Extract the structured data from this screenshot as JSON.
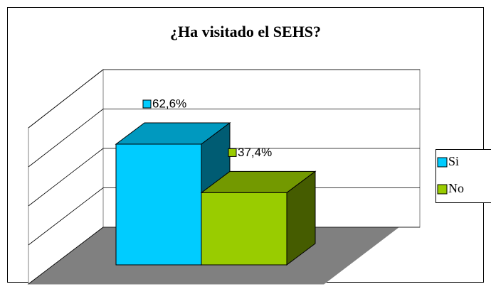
{
  "chart_data": {
    "type": "bar3d",
    "title": "¿Ha visitado el SEHS?",
    "categories": [
      null
    ],
    "series": [
      {
        "name": "Si",
        "color": "#00ccff",
        "values": [
          62.6
        ],
        "value_labels": [
          "62,6%"
        ]
      },
      {
        "name": "No",
        "color": "#99cc00",
        "values": [
          37.4
        ],
        "value_labels": [
          "37,4%"
        ]
      }
    ],
    "ylim": [
      0,
      80
    ],
    "yticks": [
      0,
      20,
      40,
      60,
      80
    ],
    "grid": true,
    "legend": "right"
  }
}
